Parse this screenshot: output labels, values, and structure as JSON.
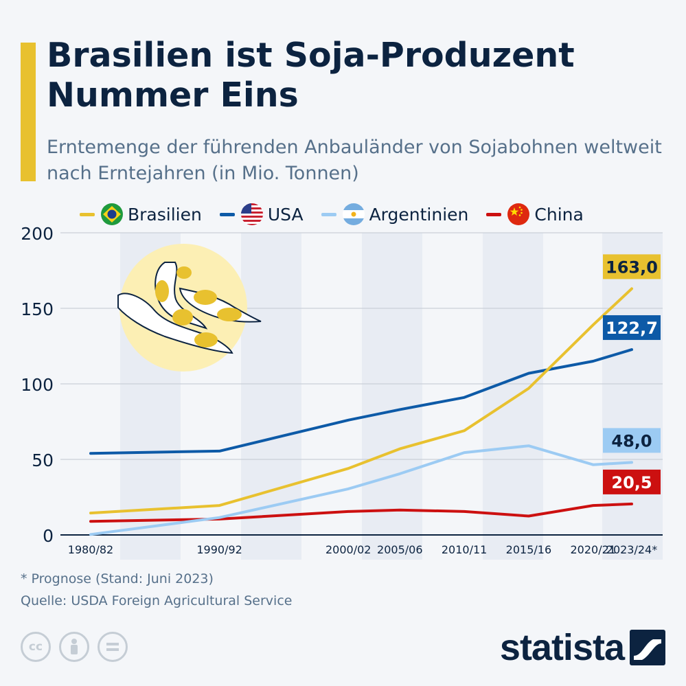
{
  "header": {
    "title": "Brasilien ist Soja-Produzent Nummer Eins",
    "subtitle": "Erntemenge der führenden Anbauländer von Sojabohnen weltweit nach Erntejahren (in Mio. Tonnen)"
  },
  "legend": [
    {
      "label": "Brasilien",
      "color": "#e8c12f",
      "flag": "brazil-flag-icon"
    },
    {
      "label": "USA",
      "color": "#0d5aa7",
      "flag": "usa-flag-icon"
    },
    {
      "label": "Argentinien",
      "color": "#9ccbf3",
      "flag": "argentina-flag-icon"
    },
    {
      "label": "China",
      "color": "#cc1010",
      "flag": "china-flag-icon"
    }
  ],
  "chart_data": {
    "type": "line",
    "title": "Brasilien ist Soja-Produzent Nummer Eins",
    "ylim": [
      0,
      200
    ],
    "yticks": [
      "0",
      "50",
      "100",
      "150",
      "200"
    ],
    "xticks": [
      "1980/82",
      "1990/92",
      "2000/02",
      "2005/06",
      "2010/11",
      "2015/16",
      "2020/21",
      "2023/24*"
    ],
    "xtick_years": [
      1981,
      1991,
      2001,
      2005,
      2010,
      2015,
      2020,
      2023
    ],
    "x": [
      1981,
      1991,
      2001,
      2005,
      2010,
      2015,
      2020,
      2023
    ],
    "grid": true,
    "series": [
      {
        "name": "Brasilien",
        "color": "#e8c12f",
        "values": [
          14.5,
          19.5,
          44,
          57,
          69,
          97,
          139,
          163.0
        ],
        "end_label": "163,0",
        "label_bg": "#e8c12f",
        "label_fg": "#0c2340"
      },
      {
        "name": "USA",
        "color": "#0d5aa7",
        "values": [
          54,
          55.5,
          76,
          83,
          91,
          107,
          115,
          122.7
        ],
        "end_label": "122,7",
        "label_bg": "#0d5aa7",
        "label_fg": "#ffffff"
      },
      {
        "name": "Argentinien",
        "color": "#9ccbf3",
        "values": [
          0.3,
          11.5,
          30.5,
          40.5,
          54.5,
          59,
          46.5,
          48.0
        ],
        "end_label": "48,0",
        "label_bg": "#9ccbf3",
        "label_fg": "#0c2340"
      },
      {
        "name": "China",
        "color": "#cc1010",
        "values": [
          9,
          10.5,
          15.5,
          16.5,
          15.5,
          12.5,
          19.5,
          20.5
        ],
        "end_label": "20,5",
        "label_bg": "#cc1010",
        "label_fg": "#ffffff"
      }
    ]
  },
  "footer": {
    "footnote": "* Prognose (Stand: Juni 2023)",
    "source": "Quelle: USDA Foreign Agricultural Service",
    "brand": "statista",
    "cc_icons": [
      "cc-icon",
      "by-icon",
      "nd-icon"
    ]
  }
}
